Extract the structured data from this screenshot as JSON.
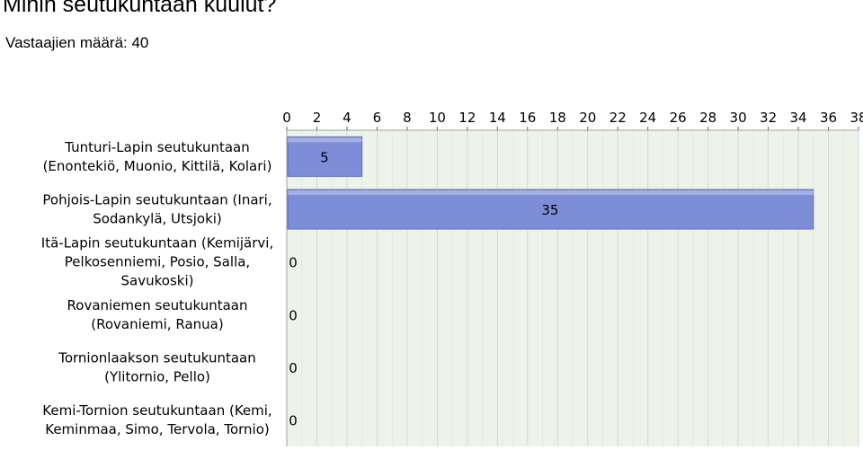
{
  "question": "Mihin seutukuntaan kuulut?",
  "respondents": "Vastaajien määrä: 40",
  "chart_data": {
    "type": "bar",
    "orientation": "horizontal",
    "title": "",
    "xlabel": "",
    "ylabel": "",
    "xlim": [
      0,
      38
    ],
    "x_ticks": [
      0,
      2,
      4,
      6,
      8,
      10,
      12,
      14,
      16,
      18,
      20,
      22,
      24,
      26,
      28,
      30,
      32,
      34,
      36,
      38
    ],
    "grid": true,
    "legend": "none",
    "bar_color": "#7e8dd8",
    "categories": [
      "Tunturi-Lapin seutukuntaan (Enontekiö, Muonio, Kittilä, Kolari)",
      "Pohjois-Lapin seutukuntaan (Inari, Sodankylä, Utsjoki)",
      "Itä-Lapin seutukuntaan (Kemijärvi, Pelkosenniemi, Posio, Salla, Savukoski)",
      "Rovaniemen seutukuntaan (Rovaniemi, Ranua)",
      "Tornionlaakson seutukuntaan (Ylitornio, Pello)",
      "Kemi-Tornion seutukuntaan (Kemi, Keminmaa, Simo, Tervola, Tornio)"
    ],
    "category_lines": [
      [
        "Tunturi-Lapin seutukuntaan",
        "(Enontekiö, Muonio, Kittilä, Kolari)"
      ],
      [
        "Pohjois-Lapin seutukuntaan (Inari,",
        "Sodankylä, Utsjoki)"
      ],
      [
        "Itä-Lapin seutukuntaan (Kemijärvi,",
        "Pelkosenniemi, Posio, Salla,",
        "Savukoski)"
      ],
      [
        "Rovaniemen seutukuntaan",
        "(Rovaniemi, Ranua)"
      ],
      [
        "Tornionlaakson seutukuntaan",
        "(Ylitornio, Pello)"
      ],
      [
        "Kemi-Tornion seutukuntaan (Kemi,",
        "Keminmaa, Simo, Tervola, Tornio)"
      ]
    ],
    "values": [
      5,
      35,
      0,
      0,
      0,
      0
    ]
  }
}
